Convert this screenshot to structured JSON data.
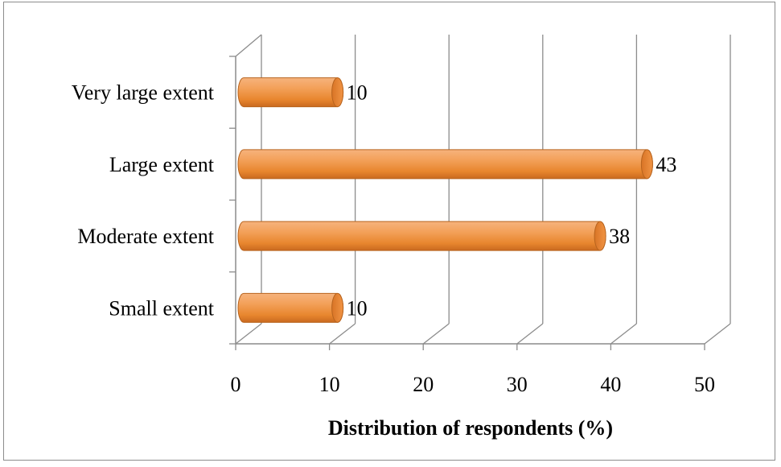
{
  "chart_data": {
    "type": "bar",
    "orientation": "horizontal",
    "style": "3d-cylinder",
    "categories": [
      "Small extent",
      "Moderate extent",
      "Large extent",
      "Very large extent"
    ],
    "values": [
      10,
      38,
      43,
      10
    ],
    "data_labels": [
      "10",
      "38",
      "43",
      "10"
    ],
    "xlabel": "Distribution of respondents (%)",
    "ylabel": "",
    "xlim": [
      0,
      50
    ],
    "x_ticks": [
      "0",
      "10",
      "20",
      "30",
      "40",
      "50"
    ],
    "grid": true,
    "legend": "none",
    "bar_color": "#F0923A",
    "bar_edge_color": "#B8641E",
    "bar_top_color": "#F7B27A",
    "grid_color": "#8C8C8C"
  }
}
